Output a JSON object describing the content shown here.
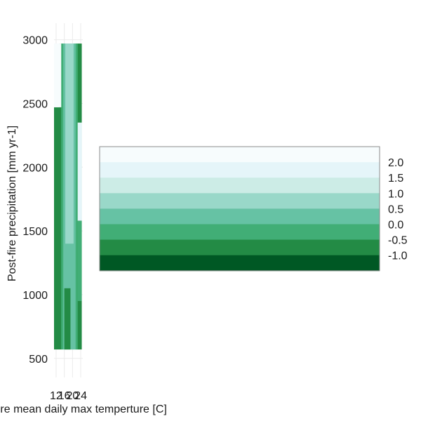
{
  "chart_data": {
    "type": "heatmap",
    "subtype": "filled-contour",
    "xlabel": "Pre-fire mean daily max temperture [C]",
    "ylabel": "Post-fire precipitation [mm yr-1]",
    "xlim": [
      11,
      25
    ],
    "ylim": [
      350,
      3130
    ],
    "x_ticks": [
      "12",
      "16",
      "20",
      "24"
    ],
    "y_ticks": [
      "500",
      "1000",
      "1500",
      "2000",
      "2500",
      "3000"
    ],
    "data_extent": {
      "x": [
        11,
        24.5
      ],
      "y": [
        570,
        2970
      ]
    },
    "grid": true,
    "legend": {
      "position": "right",
      "labels": [
        "2.0",
        "1.5",
        "1.0",
        "0.5",
        "0.0",
        "-0.5",
        "-1.0"
      ],
      "colors": [
        "#f7fcfd",
        "#e5f5f9",
        "#ccece6",
        "#99d8c9",
        "#66c2a4",
        "#41ae76",
        "#238b45",
        "#005824"
      ]
    },
    "levels": [
      {
        "band": 0,
        "color": "#005824"
      },
      {
        "band": 1,
        "color": "#238b45"
      },
      {
        "band": 2,
        "color": "#41ae76"
      },
      {
        "band": 3,
        "color": "#66c2a4"
      },
      {
        "band": 4,
        "color": "#99d8c9"
      },
      {
        "band": 5,
        "color": "#ccece6"
      },
      {
        "band": 6,
        "color": "#e5f5f9"
      },
      {
        "band": 7,
        "color": "#f7fcfd"
      }
    ],
    "regions": [
      {
        "name": "base-band-1",
        "band": 1,
        "x": [
          11,
          24.5
        ],
        "y": [
          570,
          2970
        ]
      },
      {
        "name": "upper-left-gap",
        "band": 7,
        "x": [
          11,
          15.5
        ],
        "y": [
          2470,
          2970
        ]
      },
      {
        "name": "left-notch",
        "band": 7,
        "x": [
          11,
          13.5
        ],
        "y": [
          2470,
          2970
        ]
      },
      {
        "name": "core-band-2",
        "band": 2,
        "x": [
          14.5,
          22.5
        ],
        "y": [
          570,
          2970
        ]
      },
      {
        "name": "core-band-3",
        "band": 3,
        "x": [
          15.5,
          21.5
        ],
        "y": [
          570,
          2970
        ]
      },
      {
        "name": "core-band-4",
        "band": 4,
        "x": [
          16.5,
          20.5
        ],
        "y": [
          1400,
          2970
        ]
      },
      {
        "name": "lower-gap",
        "band": 1,
        "x": [
          16,
          19
        ],
        "y": [
          570,
          1050
        ]
      },
      {
        "name": "upper-right-fade",
        "band": 6,
        "x": [
          22.5,
          24.5
        ],
        "y": [
          1580,
          2350
        ]
      },
      {
        "name": "right-band-2",
        "band": 2,
        "x": [
          22.5,
          24.5
        ],
        "y": [
          950,
          1580
        ]
      }
    ]
  }
}
